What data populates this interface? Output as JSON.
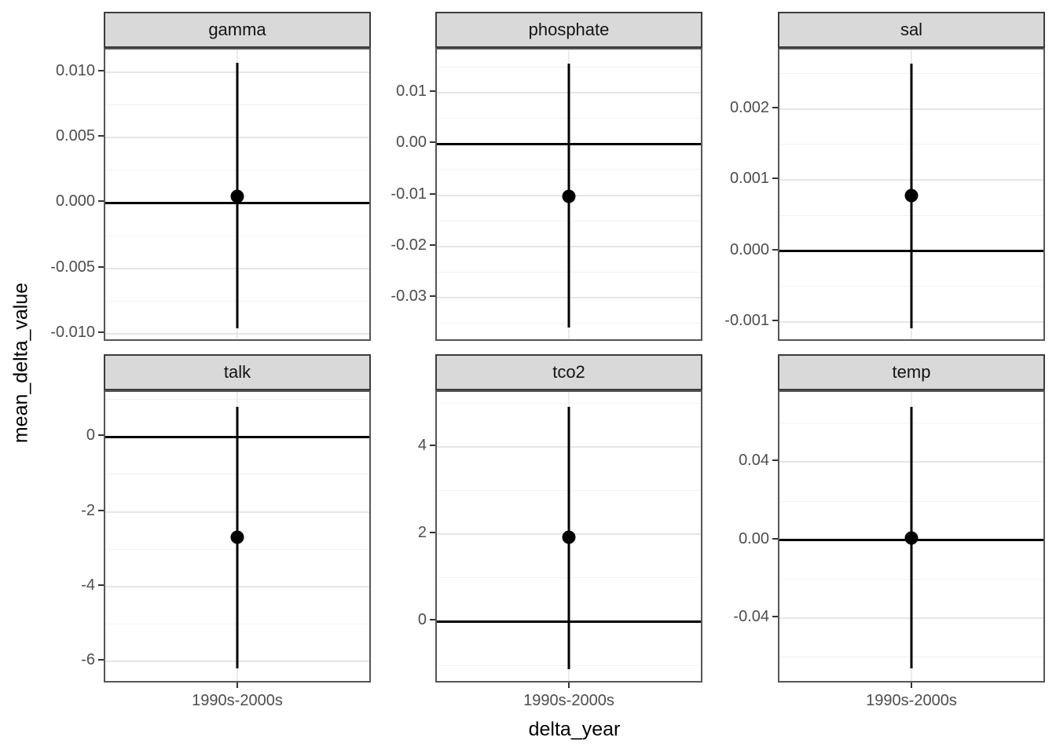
{
  "chart_data": {
    "type": "scatter",
    "subtype": "faceted_pointrange",
    "xlabel": "delta_year",
    "ylabel": "mean_delta_value",
    "x_category": "1990s-2000s",
    "grid": "on",
    "facet_layout": {
      "rows": 2,
      "cols": 3
    },
    "facets": [
      {
        "label": "gamma",
        "ylim": [
          -0.01066,
          0.01173
        ],
        "ticks": [
          {
            "v": 0.01,
            "t": "0.010"
          },
          {
            "v": 0.005,
            "t": "0.005"
          },
          {
            "v": 0.0,
            "t": "0.000"
          },
          {
            "v": -0.005,
            "t": "-0.005"
          },
          {
            "v": -0.01,
            "t": "-0.010"
          }
        ],
        "minor": [
          0.0075,
          0.0025,
          -0.0025,
          -0.0075
        ],
        "hline": 0,
        "point": 0.0005,
        "lower": -0.0096,
        "upper": 0.0107
      },
      {
        "label": "phosphate",
        "ylim": [
          -0.0387,
          0.0184
        ],
        "ticks": [
          {
            "v": 0.01,
            "t": "0.01"
          },
          {
            "v": 0.0,
            "t": "0.00"
          },
          {
            "v": -0.01,
            "t": "-0.01"
          },
          {
            "v": -0.02,
            "t": "-0.02"
          },
          {
            "v": -0.03,
            "t": "-0.03"
          }
        ],
        "minor": [
          0.015,
          0.005,
          -0.005,
          -0.015,
          -0.025,
          -0.035
        ],
        "hline": 0,
        "point": -0.0102,
        "lower": -0.0358,
        "upper": 0.0156
      },
      {
        "label": "sal",
        "ylim": [
          -0.001287,
          0.002838
        ],
        "ticks": [
          {
            "v": 0.002,
            "t": "0.002"
          },
          {
            "v": 0.001,
            "t": "0.001"
          },
          {
            "v": 0.0,
            "t": "0.000"
          },
          {
            "v": -0.001,
            "t": "-0.001"
          }
        ],
        "minor": [
          0.0025,
          0.0015,
          0.0005,
          -0.0005
        ],
        "hline": 0,
        "point": 0.00078,
        "lower": -0.00109,
        "upper": 0.00264
      },
      {
        "label": "talk",
        "ylim": [
          -6.6,
          1.2
        ],
        "ticks": [
          {
            "v": 0,
            "t": "0"
          },
          {
            "v": -2,
            "t": "-2"
          },
          {
            "v": -4,
            "t": "-4"
          },
          {
            "v": -6,
            "t": "-6"
          }
        ],
        "minor": [
          1,
          -1,
          -3,
          -5
        ],
        "hline": 0,
        "point": -2.67,
        "lower": -6.19,
        "upper": 0.8
      },
      {
        "label": "tco2",
        "ylim": [
          -1.43,
          5.26
        ],
        "ticks": [
          {
            "v": 4,
            "t": "4"
          },
          {
            "v": 2,
            "t": "2"
          },
          {
            "v": 0,
            "t": "0"
          }
        ],
        "minor": [
          5,
          3,
          1,
          -1
        ],
        "hline": 0,
        "point": 1.93,
        "lower": -1.08,
        "upper": 4.92
      },
      {
        "label": "temp",
        "ylim": [
          -0.0737,
          0.076
        ],
        "ticks": [
          {
            "v": 0.04,
            "t": "0.04"
          },
          {
            "v": 0.0,
            "t": "0.00"
          },
          {
            "v": -0.04,
            "t": "-0.04"
          }
        ],
        "minor": [
          0.06,
          0.02,
          -0.02,
          -0.06
        ],
        "hline": 0,
        "point": 0.0012,
        "lower": -0.0657,
        "upper": 0.0685
      }
    ]
  }
}
